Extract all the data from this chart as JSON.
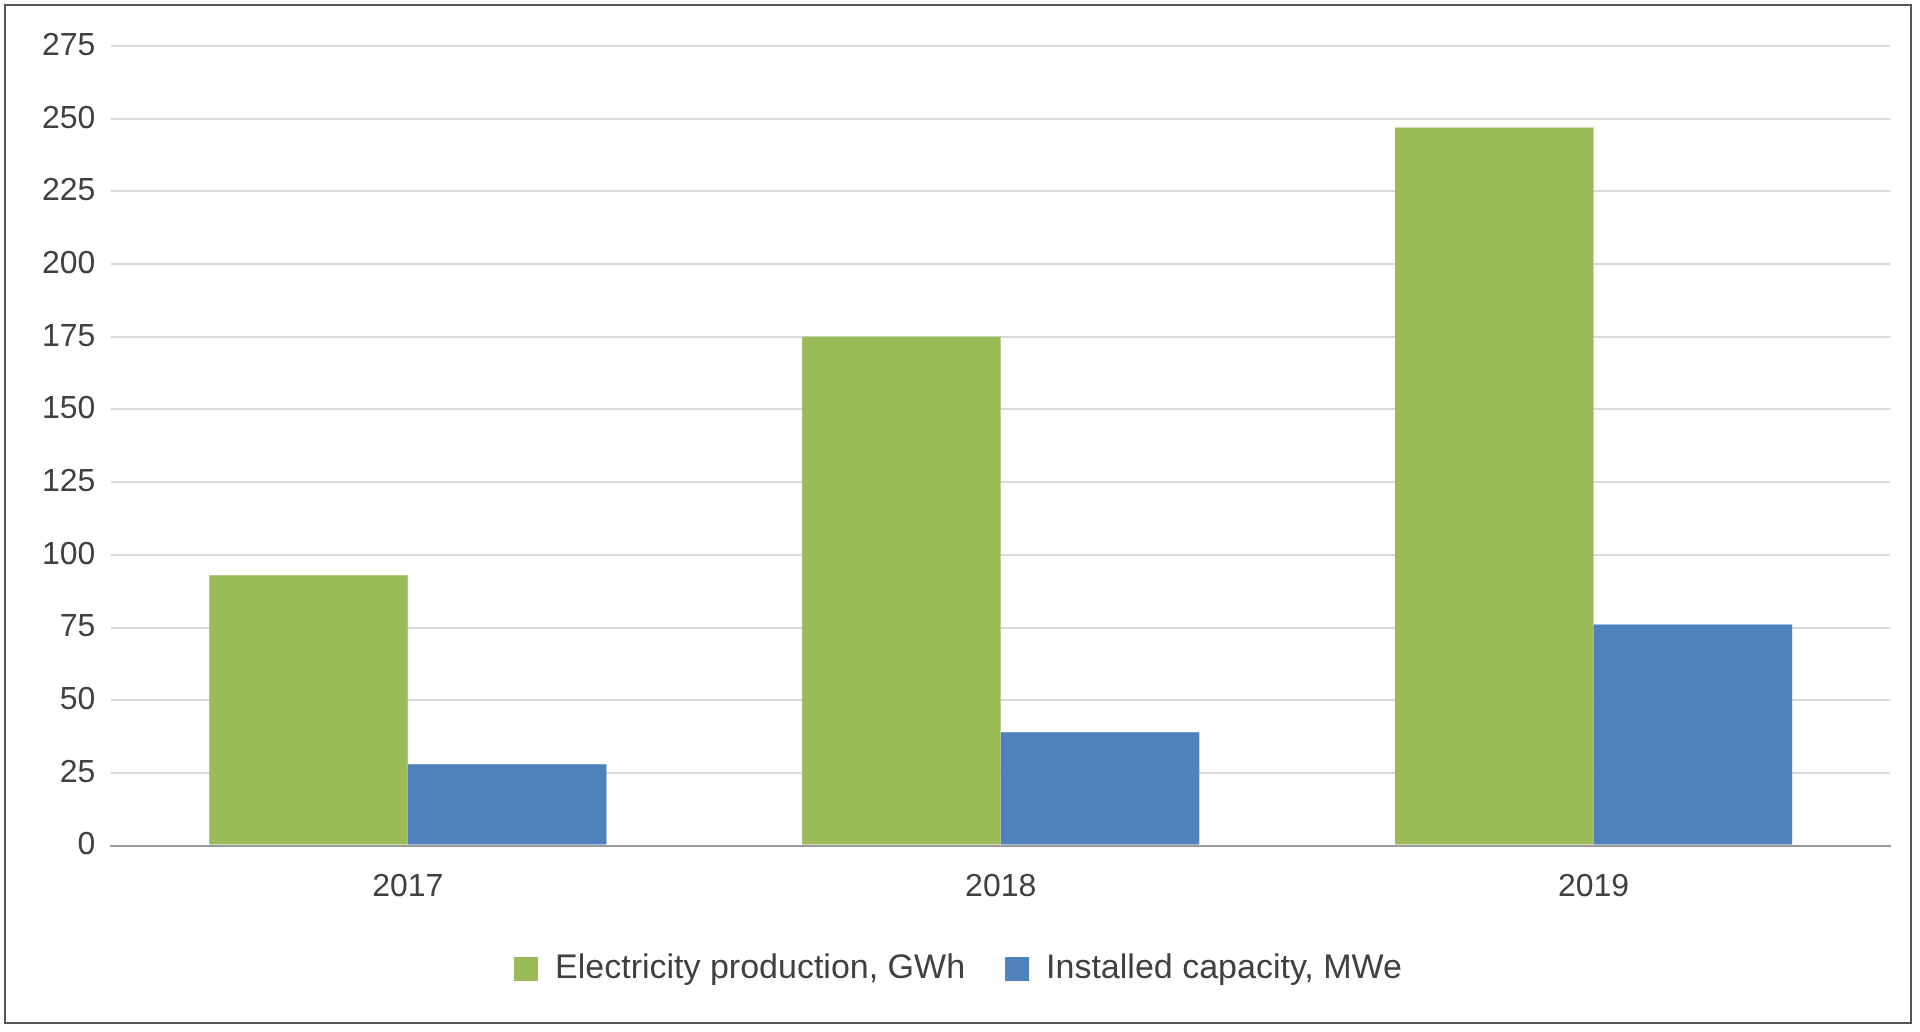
{
  "chart_data": {
    "type": "bar",
    "categories": [
      "2017",
      "2018",
      "2019"
    ],
    "series": [
      {
        "name": "Electricity production, GWh",
        "color": "#9bbb59",
        "values": [
          93,
          175,
          247
        ]
      },
      {
        "name": "Installed capacity, MWe",
        "color": "#4f81bd",
        "values": [
          28,
          39,
          76
        ]
      }
    ],
    "ylim": [
      0,
      275
    ],
    "yticks": [
      0,
      25,
      50,
      75,
      100,
      125,
      150,
      175,
      200,
      225,
      250,
      275
    ],
    "grid": "y",
    "legend": "bottom"
  }
}
